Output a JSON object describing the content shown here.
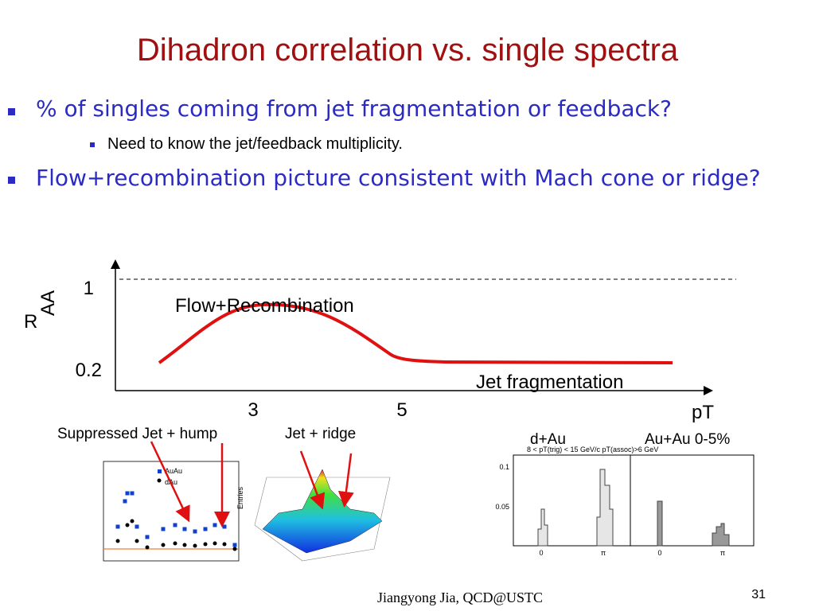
{
  "title": "Dihadron correlation vs. single spectra",
  "bullets": [
    {
      "text": "% of singles coming from jet fragmentation or feedback?",
      "sub": [
        "Need to know the jet/feedback multiplicity."
      ]
    },
    {
      "text": "Flow+recombination picture consistent with Mach cone or ridge?",
      "sub": []
    }
  ],
  "sketch": {
    "y_label": "R",
    "y_label_sub": "AA",
    "x_label": "pT",
    "y_tick_labels": [
      "1",
      "0.2"
    ],
    "x_tick_labels": [
      "3",
      "5"
    ],
    "annotations": [
      "Flow+Recombination",
      "Jet fragmentation"
    ]
  },
  "panels": {
    "labels": [
      "Suppressed Jet + hump",
      "Jet + ridge",
      "d+Au",
      "Au+Au 0-5%"
    ],
    "left_legend": [
      "AuAu",
      "dAu"
    ],
    "middle_axis": "Entries",
    "right_caption": "8 < pT(trig) < 15 GeV/c  pT(assoc)>6 GeV",
    "right_ticks": [
      "0.1",
      "0.05",
      "0",
      "π",
      "0",
      "π"
    ]
  },
  "footer": "Jiangyong Jia,  QCD@USTC",
  "page_number": "31"
}
